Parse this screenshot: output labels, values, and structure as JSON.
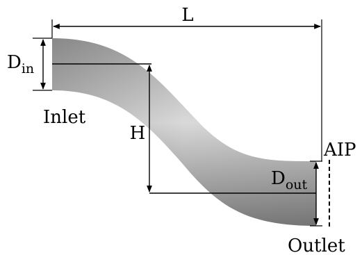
{
  "diagram": {
    "title": "",
    "labels": {
      "length": "L",
      "height": "H",
      "inlet_diameter_main": "D",
      "inlet_diameter_sub": "in",
      "outlet_diameter_main": "D",
      "outlet_diameter_sub": "out",
      "inlet": "Inlet",
      "outlet": "Outlet",
      "aip": "AIP"
    },
    "colors": {
      "duct_light": "#d9d9d9",
      "duct_mid": "#a6a6a6",
      "duct_dark": "#7a7a7a",
      "lines": "#000000"
    }
  }
}
